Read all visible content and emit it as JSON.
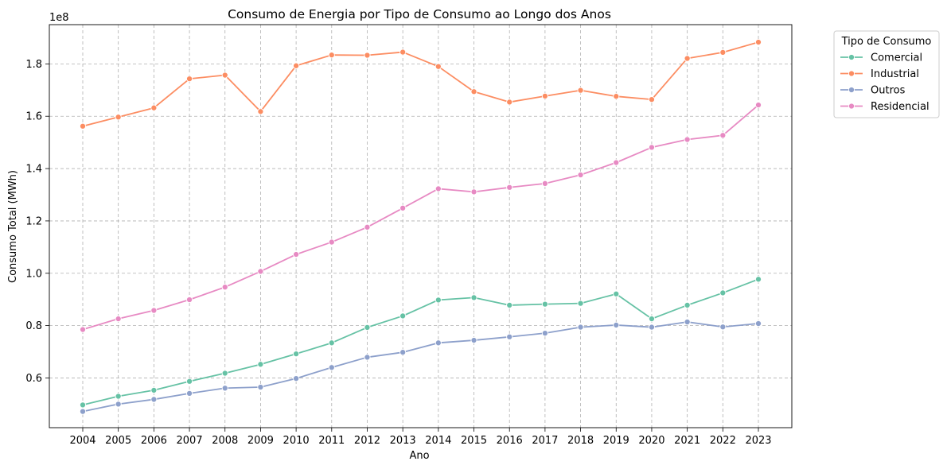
{
  "chart_data": {
    "type": "line",
    "title": "Consumo de Energia por Tipo de Consumo ao Longo dos Anos",
    "xlabel": "Ano",
    "ylabel": "Consumo Total (MWh)",
    "y_scale_label": "1e8",
    "ylim": [
      0.41,
      1.95
    ],
    "yticks": [
      0.6,
      0.8,
      1.0,
      1.2,
      1.4,
      1.6,
      1.8
    ],
    "ytick_labels": [
      "0.6",
      "0.8",
      "1.0",
      "1.2",
      "1.4",
      "1.6",
      "1.8"
    ],
    "grid": true,
    "legend": {
      "title": "Tipo de Consumo",
      "placement": "outside-top-right"
    },
    "categories": [
      "2004",
      "2005",
      "2006",
      "2007",
      "2008",
      "2009",
      "2010",
      "2011",
      "2012",
      "2013",
      "2014",
      "2015",
      "2016",
      "2017",
      "2018",
      "2019",
      "2020",
      "2021",
      "2022",
      "2023"
    ],
    "series": [
      {
        "name": "Comercial",
        "color": "#66c2a5",
        "values": [
          0.497,
          0.53,
          0.553,
          0.587,
          0.618,
          0.652,
          0.692,
          0.734,
          0.793,
          0.837,
          0.898,
          0.907,
          0.878,
          0.882,
          0.885,
          0.921,
          0.826,
          0.878,
          0.925,
          0.977
        ]
      },
      {
        "name": "Industrial",
        "color": "#fc8d62",
        "values": [
          1.562,
          1.597,
          1.632,
          1.743,
          1.757,
          1.618,
          1.793,
          1.834,
          1.833,
          1.845,
          1.79,
          1.694,
          1.654,
          1.677,
          1.699,
          1.676,
          1.664,
          1.821,
          1.844,
          1.883
        ]
      },
      {
        "name": "Outros",
        "color": "#8da0cb",
        "values": [
          0.472,
          0.5,
          0.518,
          0.541,
          0.561,
          0.565,
          0.598,
          0.64,
          0.679,
          0.698,
          0.734,
          0.744,
          0.757,
          0.771,
          0.794,
          0.802,
          0.794,
          0.814,
          0.795,
          0.808
        ]
      },
      {
        "name": "Residencial",
        "color": "#e78ac3",
        "values": [
          0.785,
          0.826,
          0.858,
          0.899,
          0.947,
          1.007,
          1.072,
          1.119,
          1.176,
          1.249,
          1.323,
          1.311,
          1.328,
          1.343,
          1.376,
          1.423,
          1.481,
          1.511,
          1.527,
          1.643
        ]
      }
    ]
  }
}
